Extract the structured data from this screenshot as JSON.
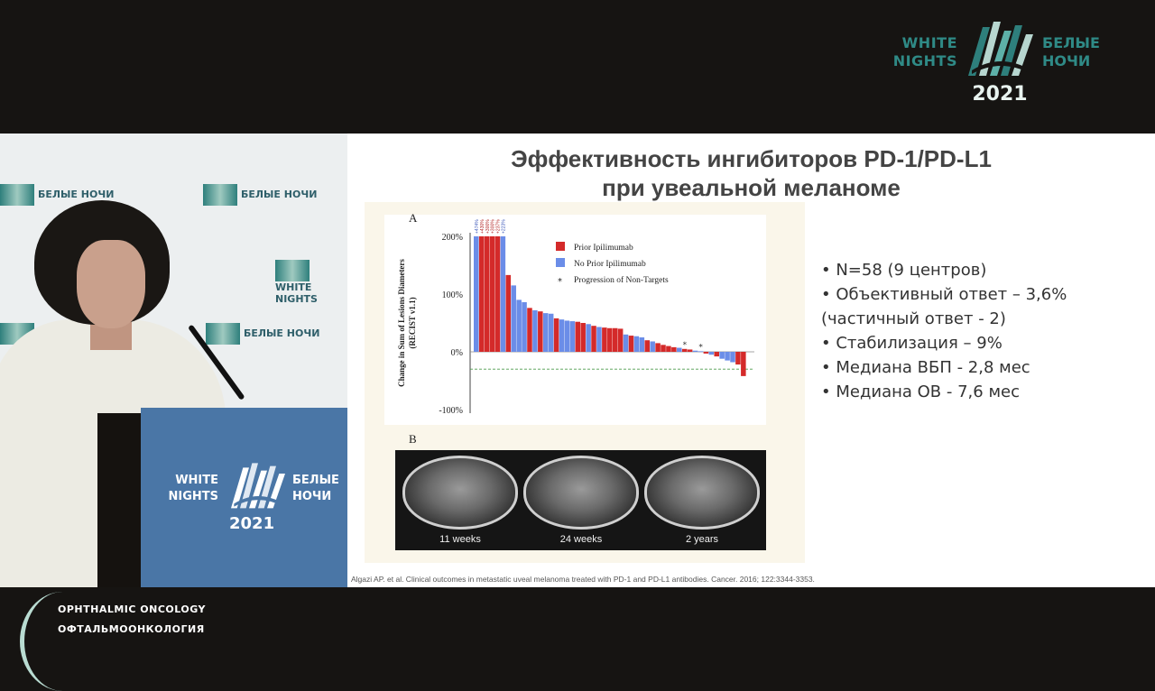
{
  "broadcast": {
    "logo_left_text": "WHITE NIGHTS",
    "logo_right_text": "БЕЛЫЕ НОЧИ",
    "logo_year": "2021"
  },
  "backdrop": {
    "logo_text_ru": "БЕЛЫЕ НОЧИ",
    "logo_text_en": "WHITE NIGHTS"
  },
  "podium": {
    "logo_left_text": "WHITE NIGHTS",
    "logo_right_text": "БЕЛЫЕ НОЧИ",
    "logo_year": "2021"
  },
  "slide": {
    "title_line1": "Эффективность ингибиторов PD-1/PD-L1",
    "title_line2": "при увеальной меланоме",
    "panel_a_label": "A",
    "panel_b_label": "B",
    "bullets": [
      "• N=58 (9 центров)",
      "• Объективный ответ –  3,6%",
      "(частичный ответ  - 2)",
      "• Стабилизация – 9%",
      "• Медиана ВБП - 2,8 мес",
      "• Медиана ОВ -  7,6 мес"
    ],
    "scan_captions": [
      "11 weeks",
      "24 weeks",
      "2 years"
    ],
    "citation": "Algazi AP. et al. Clinical outcomes in metastatic uveal melanoma treated with PD-1 and PD-L1 antibodies. Cancer. 2016; 122:3344-3353."
  },
  "chart_data": {
    "type": "bar",
    "ylabel": "Change in Sum of Lesions Diameters (RECIST v1.1)",
    "ylim": [
      -100,
      200
    ],
    "yticks": [
      "200%",
      "100%",
      "0%",
      "-100%"
    ],
    "capped_labels": [
      "+474%",
      "+430%",
      "+300%",
      "+300%",
      "+237%",
      "+223%"
    ],
    "legend": [
      "Prior Ipilimumab",
      "No Prior Ipilimumab",
      "Progression of Non-Targets"
    ],
    "colors": {
      "prior": "#d42a2a",
      "no_prior": "#6b8de8",
      "threshold": "#4a9a4a"
    },
    "bars": [
      {
        "v": 200,
        "g": "no_prior"
      },
      {
        "v": 200,
        "g": "prior"
      },
      {
        "v": 200,
        "g": "prior"
      },
      {
        "v": 200,
        "g": "prior"
      },
      {
        "v": 200,
        "g": "prior"
      },
      {
        "v": 200,
        "g": "no_prior"
      },
      {
        "v": 133,
        "g": "prior"
      },
      {
        "v": 115,
        "g": "no_prior"
      },
      {
        "v": 90,
        "g": "no_prior"
      },
      {
        "v": 86,
        "g": "no_prior"
      },
      {
        "v": 76,
        "g": "prior"
      },
      {
        "v": 72,
        "g": "no_prior"
      },
      {
        "v": 70,
        "g": "prior"
      },
      {
        "v": 67,
        "g": "no_prior"
      },
      {
        "v": 66,
        "g": "no_prior"
      },
      {
        "v": 58,
        "g": "prior"
      },
      {
        "v": 56,
        "g": "no_prior"
      },
      {
        "v": 54,
        "g": "no_prior"
      },
      {
        "v": 53,
        "g": "no_prior"
      },
      {
        "v": 52,
        "g": "prior"
      },
      {
        "v": 50,
        "g": "prior"
      },
      {
        "v": 48,
        "g": "no_prior"
      },
      {
        "v": 45,
        "g": "prior"
      },
      {
        "v": 43,
        "g": "no_prior"
      },
      {
        "v": 42,
        "g": "prior"
      },
      {
        "v": 41,
        "g": "prior"
      },
      {
        "v": 41,
        "g": "prior"
      },
      {
        "v": 40,
        "g": "prior"
      },
      {
        "v": 30,
        "g": "no_prior"
      },
      {
        "v": 28,
        "g": "prior"
      },
      {
        "v": 27,
        "g": "no_prior"
      },
      {
        "v": 25,
        "g": "no_prior"
      },
      {
        "v": 20,
        "g": "prior"
      },
      {
        "v": 18,
        "g": "no_prior"
      },
      {
        "v": 15,
        "g": "prior"
      },
      {
        "v": 12,
        "g": "prior"
      },
      {
        "v": 10,
        "g": "prior"
      },
      {
        "v": 8,
        "g": "prior"
      },
      {
        "v": 7,
        "g": "no_prior"
      },
      {
        "v": 5,
        "g": "prior"
      },
      {
        "v": 4,
        "g": "prior"
      },
      {
        "v": 2,
        "g": "no_prior"
      },
      {
        "v": 1,
        "g": "no_prior"
      },
      {
        "v": -3,
        "g": "prior"
      },
      {
        "v": -5,
        "g": "no_prior"
      },
      {
        "v": -8,
        "g": "prior"
      },
      {
        "v": -12,
        "g": "no_prior"
      },
      {
        "v": -15,
        "g": "no_prior"
      },
      {
        "v": -18,
        "g": "no_prior"
      },
      {
        "v": -22,
        "g": "prior"
      },
      {
        "v": -42,
        "g": "prior"
      }
    ],
    "threshold": -30,
    "asterisks": [
      39,
      42
    ]
  },
  "lower_third": {
    "line1": "OPHTHALMIC ONCOLOGY",
    "line2": "ОФТАЛЬМООНКОЛОГИЯ"
  }
}
